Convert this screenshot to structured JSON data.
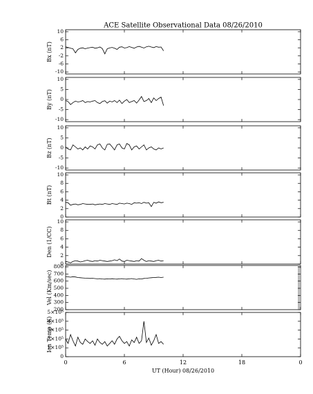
{
  "chart_data": [
    {
      "type": "line",
      "title": "ACE Satellite Observational Data   08/26/2010",
      "ylabel": "Bx (nT)",
      "color": "#000000",
      "x": [
        0,
        0.25,
        0.5,
        0.75,
        1,
        1.25,
        1.5,
        1.75,
        2,
        2.25,
        2.5,
        2.75,
        3,
        3.25,
        3.5,
        3.75,
        4,
        4.25,
        4.5,
        4.75,
        5,
        5.25,
        5.5,
        5.75,
        6,
        6.25,
        6.5,
        6.75,
        7,
        7.25,
        7.5,
        7.75,
        8,
        8.25,
        8.5,
        8.75,
        9,
        9.25,
        9.5,
        9.75,
        10
      ],
      "values": [
        2.5,
        2.2,
        1.8,
        1.5,
        -0.5,
        1.2,
        1.8,
        2,
        1.5,
        1.9,
        2.1,
        2.3,
        1.8,
        2,
        2.4,
        1.6,
        -1,
        1.5,
        2,
        2.2,
        1.8,
        1.2,
        2.3,
        2.5,
        1.9,
        2.1,
        2.6,
        2.2,
        1.8,
        2.4,
        2.7,
        2.3,
        1.9,
        2.5,
        2.8,
        2.4,
        2.1,
        2.6,
        2.3,
        2.4,
        0.5
      ],
      "ylim": [
        -11,
        11
      ],
      "yticks": [
        -10,
        -6,
        -2,
        2,
        6,
        10
      ]
    },
    {
      "type": "line",
      "ylabel": "By (nT)",
      "color": "#000000",
      "x": [
        0,
        0.25,
        0.5,
        0.75,
        1,
        1.25,
        1.5,
        1.75,
        2,
        2.25,
        2.5,
        2.75,
        3,
        3.25,
        3.5,
        3.75,
        4,
        4.25,
        4.5,
        4.75,
        5,
        5.25,
        5.5,
        5.75,
        6,
        6.25,
        6.5,
        6.75,
        7,
        7.25,
        7.5,
        7.75,
        8,
        8.25,
        8.5,
        8.75,
        9,
        9.25,
        9.5,
        9.75,
        10
      ],
      "values": [
        -0.5,
        -1,
        -2.5,
        -1.5,
        -0.8,
        -1.2,
        -1,
        -0.5,
        -1.5,
        -1,
        -1.2,
        -0.8,
        -0.5,
        -1.5,
        -2,
        -1,
        -0.6,
        -1.8,
        -0.8,
        -1.2,
        -0.5,
        -1.5,
        -0.3,
        -2,
        -0.8,
        0,
        -1.5,
        -1,
        -0.5,
        -1.8,
        -0.2,
        1.5,
        -1,
        -0.5,
        0.5,
        -1.5,
        0.8,
        -0.5,
        0.5,
        1.2,
        -3
      ],
      "ylim": [
        -11,
        11
      ],
      "yticks": [
        -10,
        -5,
        0,
        5,
        10
      ]
    },
    {
      "type": "line",
      "ylabel": "Bz (nT)",
      "color": "#000000",
      "x": [
        0,
        0.25,
        0.5,
        0.75,
        1,
        1.25,
        1.5,
        1.75,
        2,
        2.25,
        2.5,
        2.75,
        3,
        3.25,
        3.5,
        3.75,
        4,
        4.25,
        4.5,
        4.75,
        5,
        5.25,
        5.5,
        5.75,
        6,
        6.25,
        6.5,
        6.75,
        7,
        7.25,
        7.5,
        7.75,
        8,
        8.25,
        8.5,
        8.75,
        9,
        9.25,
        9.5,
        9.75,
        10
      ],
      "values": [
        0.5,
        -0.5,
        -1,
        1.5,
        0.5,
        -0.5,
        0,
        -1,
        0.5,
        -0.5,
        1,
        0.5,
        -0.5,
        1.5,
        2,
        0,
        -1,
        1.8,
        2,
        0.5,
        -1,
        1.5,
        2,
        0,
        -0.5,
        2.2,
        1.5,
        -1,
        0.5,
        1,
        -0.5,
        0.5,
        1.5,
        -1,
        0,
        0.5,
        -0.5,
        -1,
        0,
        -0.5,
        0
      ],
      "ylim": [
        -11,
        11
      ],
      "yticks": [
        -10,
        -5,
        0,
        5,
        10
      ]
    },
    {
      "type": "line",
      "ylabel": "Bt (nT)",
      "color": "#000000",
      "x": [
        0,
        0.25,
        0.5,
        0.75,
        1,
        1.25,
        1.5,
        1.75,
        2,
        2.25,
        2.5,
        2.75,
        3,
        3.25,
        3.5,
        3.75,
        4,
        4.25,
        4.5,
        4.75,
        5,
        5.25,
        5.5,
        5.75,
        6,
        6.25,
        6.5,
        6.75,
        7,
        7.25,
        7.5,
        7.75,
        8,
        8.25,
        8.5,
        8.75,
        9,
        9.25,
        9.5,
        9.75,
        10
      ],
      "values": [
        3.5,
        3.4,
        2.8,
        3,
        3.1,
        2.9,
        3,
        3.2,
        3.1,
        3,
        3,
        3.1,
        2.9,
        3,
        3.1,
        3,
        3.2,
        3.1,
        3,
        3.2,
        3.1,
        3,
        3.3,
        3.2,
        3.1,
        3.3,
        3.2,
        3,
        3.4,
        3.3,
        3.4,
        3.2,
        3.5,
        3.3,
        3.4,
        2.5,
        3.5,
        3.3,
        3.6,
        3.4,
        3.5
      ],
      "ylim": [
        0,
        10.5
      ],
      "yticks": [
        0,
        2,
        4,
        6,
        8,
        10
      ]
    },
    {
      "type": "line",
      "ylabel": "Den (1/CC)",
      "color": "#000000",
      "x": [
        0,
        0.25,
        0.5,
        0.75,
        1,
        1.25,
        1.5,
        1.75,
        2,
        2.25,
        2.5,
        2.75,
        3,
        3.25,
        3.5,
        3.75,
        4,
        4.25,
        4.5,
        4.75,
        5,
        5.25,
        5.5,
        5.75,
        6,
        6.25,
        6.5,
        6.75,
        7,
        7.25,
        7.5,
        7.75,
        8,
        8.25,
        8.5,
        8.75,
        9,
        9.25,
        9.5,
        9.75,
        10
      ],
      "values": [
        0.6,
        0.5,
        0.3,
        0.6,
        0.8,
        0.7,
        0.5,
        0.6,
        0.8,
        0.9,
        0.7,
        0.6,
        0.8,
        0.7,
        0.9,
        0.8,
        0.7,
        0.6,
        0.7,
        0.8,
        1,
        0.8,
        1.2,
        0.7,
        0.6,
        0.9,
        0.8,
        0.7,
        0.6,
        0.8,
        0.7,
        1.3,
        0.9,
        0.6,
        0.8,
        0.7,
        0.6,
        0.8,
        0.9,
        0.7,
        0.8
      ],
      "ylim": [
        0,
        10.5
      ],
      "yticks": [
        0,
        2,
        4,
        6,
        8,
        10
      ]
    },
    {
      "type": "line",
      "ylabel": "Vel (Km/sec)",
      "color": "#000000",
      "x": [
        0,
        0.25,
        0.5,
        0.75,
        1,
        1.25,
        1.5,
        1.75,
        2,
        2.25,
        2.5,
        2.75,
        3,
        3.25,
        3.5,
        3.75,
        4,
        4.25,
        4.5,
        4.75,
        5,
        5.25,
        5.5,
        5.75,
        6,
        6.25,
        6.5,
        6.75,
        7,
        7.25,
        7.5,
        7.75,
        8,
        8.25,
        8.5,
        8.75,
        9,
        9.25,
        9.5,
        9.75,
        10
      ],
      "values": [
        665,
        660,
        655,
        662,
        658,
        650,
        648,
        645,
        642,
        640,
        638,
        640,
        636,
        632,
        635,
        630,
        628,
        632,
        630,
        634,
        630,
        628,
        632,
        635,
        630,
        628,
        632,
        636,
        630,
        625,
        632,
        630,
        638,
        640,
        645,
        648,
        650,
        652,
        655,
        650,
        655
      ],
      "ylim": [
        200,
        820
      ],
      "yticks": [
        200,
        300,
        400,
        500,
        600,
        700,
        800
      ]
    },
    {
      "type": "line",
      "ylabel": "Ion Temp (K)",
      "color": "#000000",
      "xlabel": "UT (Hour)  08/26/2010",
      "x": [
        0,
        0.25,
        0.5,
        0.75,
        1,
        1.25,
        1.5,
        1.75,
        2,
        2.25,
        2.5,
        2.75,
        3,
        3.25,
        3.5,
        3.75,
        4,
        4.25,
        4.5,
        4.75,
        5,
        5.25,
        5.5,
        5.75,
        6,
        6.25,
        6.5,
        6.75,
        7,
        7.25,
        7.5,
        7.75,
        8,
        8.25,
        8.5,
        8.75,
        9,
        9.25,
        9.5,
        9.75,
        10
      ],
      "values": [
        200000,
        150000,
        250000,
        180000,
        120000,
        220000,
        160000,
        140000,
        200000,
        170000,
        150000,
        180000,
        130000,
        200000,
        160000,
        140000,
        170000,
        120000,
        150000,
        180000,
        140000,
        200000,
        230000,
        180000,
        150000,
        170000,
        120000,
        190000,
        160000,
        220000,
        150000,
        180000,
        400000,
        160000,
        210000,
        130000,
        180000,
        250000,
        150000,
        170000,
        140000
      ],
      "ylim": [
        0,
        500000
      ],
      "yticks": [
        0,
        {
          "value": 100000,
          "label": "1×10⁵"
        },
        {
          "value": 200000,
          "label": "2×10⁵"
        },
        {
          "value": 300000,
          "label": "3×10⁵"
        },
        {
          "value": 400000,
          "label": "4×10⁵"
        },
        {
          "value": 500000,
          "label": "5×10⁵"
        }
      ],
      "xlim": [
        0,
        24
      ],
      "xticks": [
        0,
        6,
        12,
        18,
        {
          "value": 24,
          "label": "0"
        }
      ]
    }
  ]
}
